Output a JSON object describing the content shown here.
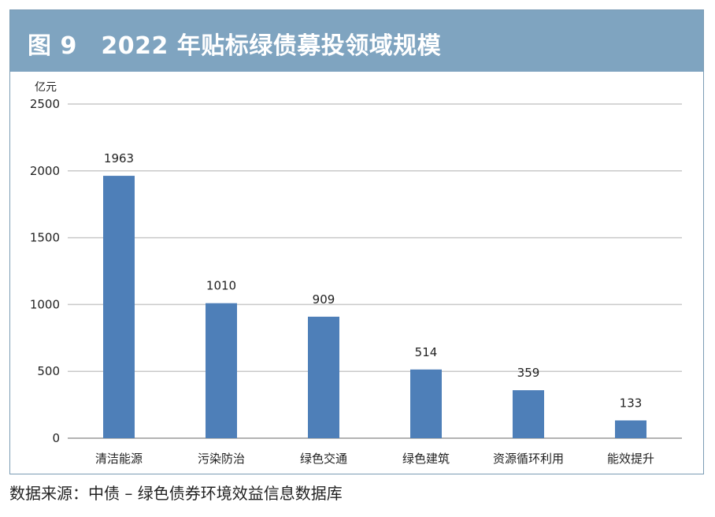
{
  "header": {
    "title": "图 9　2022 年贴标绿债募投领域规模"
  },
  "footer": {
    "source": "数据来源：中债 – 绿色债券环境效益信息数据库"
  },
  "colors": {
    "bar": "#4e7fb8",
    "header": "#7fa4c0",
    "grid": "#c9c9c9"
  },
  "chart_data": {
    "type": "bar",
    "title": "2022 年贴标绿债募投领域规模",
    "ylabel": "亿元",
    "xlabel": "",
    "ylim": [
      0,
      2500
    ],
    "yticks": [
      0,
      500,
      1000,
      1500,
      2000,
      2500
    ],
    "grid": true,
    "categories": [
      "清洁能源",
      "污染防治",
      "绿色交通",
      "绿色建筑",
      "资源循环利用",
      "能效提升"
    ],
    "values": [
      1963,
      1010,
      909,
      514,
      359,
      133
    ]
  }
}
